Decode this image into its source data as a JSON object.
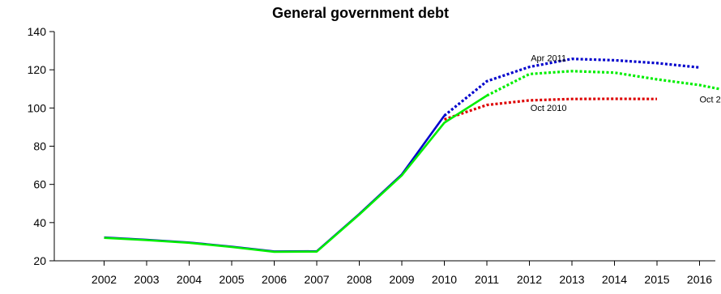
{
  "chart_data": {
    "type": "line",
    "title": "General government debt",
    "xlabel": "",
    "ylabel": "",
    "x_ticks": [
      "2002",
      "2003",
      "2004",
      "2005",
      "2006",
      "2007",
      "2008",
      "2009",
      "2010",
      "2011",
      "2012",
      "2013",
      "2014",
      "2015",
      "2016"
    ],
    "ylim": [
      20,
      140
    ],
    "y_ticks": [
      20,
      40,
      60,
      80,
      100,
      120,
      140
    ],
    "xlim": [
      2001,
      2016.5
    ],
    "grid": false,
    "series": [
      {
        "color": "#0000cc",
        "style": "solid",
        "points": [
          [
            2002,
            32.2
          ],
          [
            2003,
            31.0
          ],
          [
            2004,
            29.6
          ],
          [
            2005,
            27.4
          ],
          [
            2006,
            24.9
          ],
          [
            2007,
            25.0
          ],
          [
            2008,
            44.5
          ],
          [
            2009,
            65.2
          ],
          [
            2010,
            96.0
          ]
        ]
      },
      {
        "color": "#0000cc",
        "style": "dotted",
        "label": "Apr 2011",
        "points": [
          [
            2010,
            96.0
          ],
          [
            2011,
            114.0
          ],
          [
            2012,
            121.5
          ],
          [
            2013,
            125.7
          ],
          [
            2014,
            125.0
          ],
          [
            2015,
            123.5
          ],
          [
            2016,
            121.2
          ]
        ]
      },
      {
        "color": "#dd0000",
        "style": "dotted",
        "label": "Oct 2010",
        "points": [
          [
            2010,
            94.0
          ],
          [
            2011,
            101.6
          ],
          [
            2012,
            104.0
          ],
          [
            2013,
            104.7
          ],
          [
            2014,
            104.8
          ],
          [
            2015,
            104.7
          ]
        ]
      },
      {
        "color": "#00ee00",
        "style": "solid",
        "points": [
          [
            2002,
            32.0
          ],
          [
            2003,
            30.8
          ],
          [
            2004,
            29.4
          ],
          [
            2005,
            27.2
          ],
          [
            2006,
            24.7
          ],
          [
            2007,
            24.8
          ],
          [
            2008,
            44.2
          ],
          [
            2009,
            64.7
          ],
          [
            2010,
            92.3
          ],
          [
            2011,
            106.5
          ]
        ]
      },
      {
        "color": "#00ee00",
        "style": "dotted",
        "label": "Oct 2",
        "points": [
          [
            2011,
            106.5
          ],
          [
            2012,
            117.8
          ],
          [
            2013,
            119.3
          ],
          [
            2014,
            118.5
          ],
          [
            2015,
            115.0
          ],
          [
            2016,
            112.0
          ],
          [
            2016.5,
            109.8
          ]
        ]
      }
    ]
  }
}
